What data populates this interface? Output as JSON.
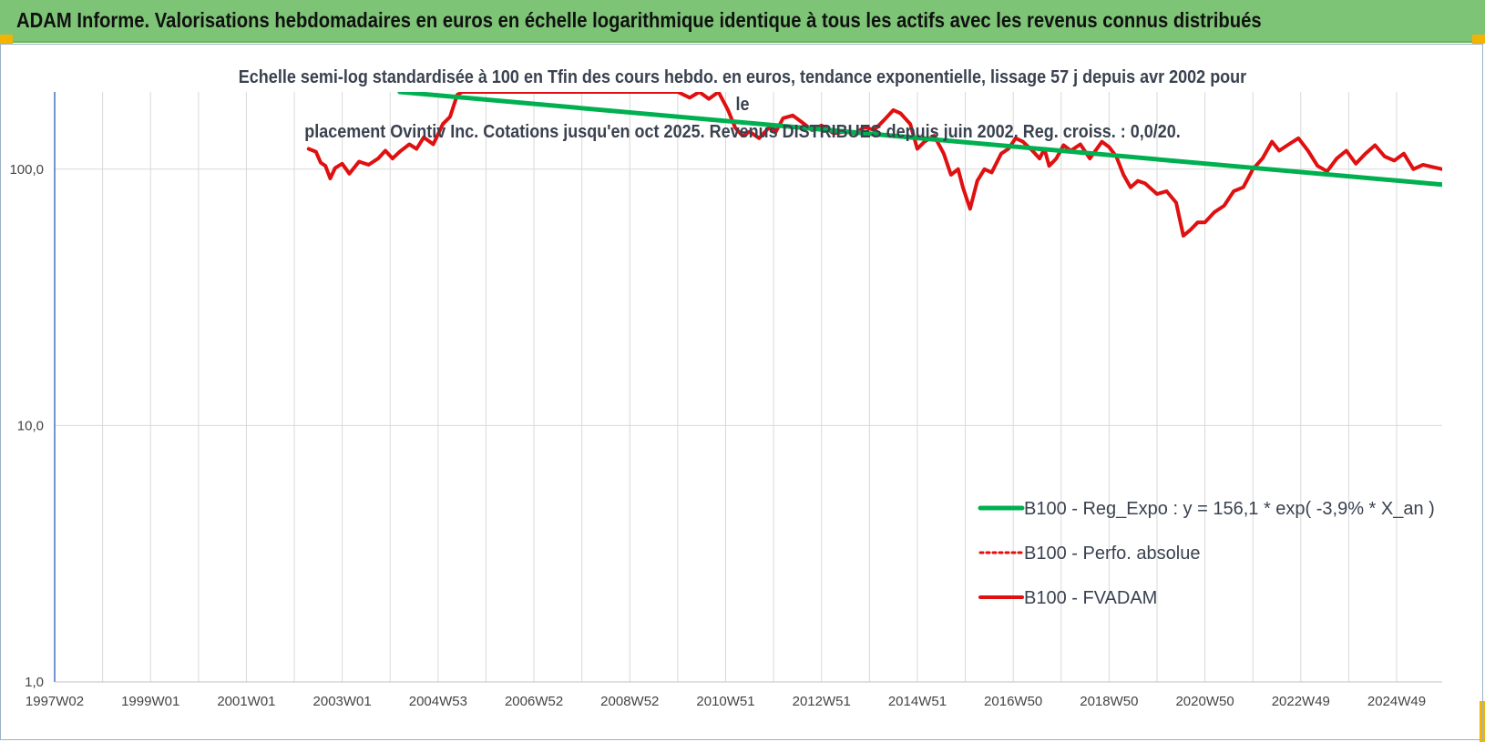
{
  "header": {
    "title": "ADAM Informe. Valorisations hebdomadaires en euros en échelle logarithmique identique à tous les actifs avec les revenus connus distribués"
  },
  "colors": {
    "header_bg": "#7dc476",
    "accent": "#f2b400",
    "trend": "#00b050",
    "price": "#e01010",
    "grid": "#d9d9d9",
    "axis": "#4472c4"
  },
  "chart_data": {
    "type": "line",
    "subtitle_line1": "Echelle semi-log standardisée à 100 en Tfin des cours hebdo. en euros, tendance exponentielle, lissage 57 j depuis avr 2002 pour le",
    "subtitle_line2": "placement Ovintiv Inc. Cotations jusqu'en oct 2025. Revenus DISTRIBUES depuis juin 2002. Reg. croiss. : 0,0/20.",
    "y_scale": "log",
    "ylim": [
      1,
      200
    ],
    "y_ticks": [
      {
        "value": 1,
        "label": "1,0"
      },
      {
        "value": 10,
        "label": "10,0"
      },
      {
        "value": 100,
        "label": "100,0"
      }
    ],
    "x_range": [
      1997.0,
      2025.95
    ],
    "x_ticks": [
      {
        "x": 1997.0,
        "label": "1997W02"
      },
      {
        "x": 1999.0,
        "label": "1999W01"
      },
      {
        "x": 2001.0,
        "label": "2001W01"
      },
      {
        "x": 2003.0,
        "label": "2003W01"
      },
      {
        "x": 2005.0,
        "label": "2004W53"
      },
      {
        "x": 2007.0,
        "label": "2006W52"
      },
      {
        "x": 2009.0,
        "label": "2008W52"
      },
      {
        "x": 2011.0,
        "label": "2010W51"
      },
      {
        "x": 2013.0,
        "label": "2012W51"
      },
      {
        "x": 2015.0,
        "label": "2014W51"
      },
      {
        "x": 2017.0,
        "label": "2016W50"
      },
      {
        "x": 2019.0,
        "label": "2018W50"
      },
      {
        "x": 2021.0,
        "label": "2020W50"
      },
      {
        "x": 2023.0,
        "label": "2022W49"
      },
      {
        "x": 2025.0,
        "label": "2024W49"
      }
    ],
    "grid": true,
    "legend_position": "bottom-right",
    "series": [
      {
        "name": "B100 - Reg_Expo : y = 156,1 * exp( -3,9% *  X_an )",
        "style": "solid",
        "points": [
          [
            2004.2,
            200
          ],
          [
            2025.95,
            87
          ]
        ]
      },
      {
        "name": "B100 - Perfo. absolue",
        "style": "dotted",
        "points": []
      },
      {
        "name": "B100 - FVADAM",
        "style": "solid",
        "points": [
          [
            2002.3,
            120
          ],
          [
            2002.45,
            117
          ],
          [
            2002.55,
            106
          ],
          [
            2002.65,
            103
          ],
          [
            2002.75,
            92
          ],
          [
            2002.85,
            101
          ],
          [
            2003.0,
            105
          ],
          [
            2003.15,
            96
          ],
          [
            2003.35,
            107
          ],
          [
            2003.55,
            104
          ],
          [
            2003.75,
            110
          ],
          [
            2003.9,
            118
          ],
          [
            2004.05,
            110
          ],
          [
            2004.2,
            117
          ],
          [
            2004.4,
            125
          ],
          [
            2004.55,
            120
          ],
          [
            2004.7,
            133
          ],
          [
            2004.9,
            125
          ],
          [
            2005.1,
            150
          ],
          [
            2005.25,
            160
          ],
          [
            2005.4,
            195
          ],
          [
            2005.5,
            200
          ],
          [
            2010.0,
            200
          ],
          [
            2010.25,
            190
          ],
          [
            2010.45,
            200
          ],
          [
            2010.65,
            188
          ],
          [
            2010.85,
            200
          ],
          [
            2011.05,
            170
          ],
          [
            2011.2,
            145
          ],
          [
            2011.35,
            135
          ],
          [
            2011.5,
            140
          ],
          [
            2011.7,
            132
          ],
          [
            2011.9,
            145
          ],
          [
            2012.05,
            140
          ],
          [
            2012.2,
            158
          ],
          [
            2012.4,
            162
          ],
          [
            2012.6,
            152
          ],
          [
            2012.8,
            142
          ],
          [
            2013.0,
            148
          ],
          [
            2013.25,
            138
          ],
          [
            2013.5,
            140
          ],
          [
            2013.7,
            138
          ],
          [
            2013.9,
            146
          ],
          [
            2014.1,
            142
          ],
          [
            2014.3,
            155
          ],
          [
            2014.5,
            170
          ],
          [
            2014.65,
            165
          ],
          [
            2014.85,
            150
          ],
          [
            2015.0,
            120
          ],
          [
            2015.15,
            128
          ],
          [
            2015.35,
            135
          ],
          [
            2015.55,
            115
          ],
          [
            2015.7,
            95
          ],
          [
            2015.85,
            100
          ],
          [
            2015.95,
            85
          ],
          [
            2016.1,
            70
          ],
          [
            2016.25,
            90
          ],
          [
            2016.4,
            100
          ],
          [
            2016.55,
            97
          ],
          [
            2016.75,
            115
          ],
          [
            2016.9,
            120
          ],
          [
            2017.05,
            132
          ],
          [
            2017.2,
            128
          ],
          [
            2017.4,
            118
          ],
          [
            2017.55,
            110
          ],
          [
            2017.65,
            120
          ],
          [
            2017.75,
            103
          ],
          [
            2017.9,
            110
          ],
          [
            2018.05,
            124
          ],
          [
            2018.2,
            118
          ],
          [
            2018.4,
            125
          ],
          [
            2018.6,
            110
          ],
          [
            2018.85,
            128
          ],
          [
            2019.0,
            122
          ],
          [
            2019.15,
            112
          ],
          [
            2019.3,
            95
          ],
          [
            2019.45,
            85
          ],
          [
            2019.6,
            90
          ],
          [
            2019.75,
            88
          ],
          [
            2020.0,
            80
          ],
          [
            2020.2,
            82
          ],
          [
            2020.4,
            74
          ],
          [
            2020.55,
            55
          ],
          [
            2020.7,
            58
          ],
          [
            2020.85,
            62
          ],
          [
            2021.0,
            62
          ],
          [
            2021.2,
            68
          ],
          [
            2021.4,
            72
          ],
          [
            2021.6,
            82
          ],
          [
            2021.8,
            85
          ],
          [
            2022.0,
            100
          ],
          [
            2022.2,
            110
          ],
          [
            2022.4,
            128
          ],
          [
            2022.55,
            118
          ],
          [
            2022.75,
            125
          ],
          [
            2022.95,
            132
          ],
          [
            2023.15,
            118
          ],
          [
            2023.35,
            103
          ],
          [
            2023.55,
            98
          ],
          [
            2023.75,
            110
          ],
          [
            2023.95,
            118
          ],
          [
            2024.15,
            105
          ],
          [
            2024.35,
            115
          ],
          [
            2024.55,
            124
          ],
          [
            2024.75,
            112
          ],
          [
            2024.95,
            108
          ],
          [
            2025.15,
            115
          ],
          [
            2025.35,
            100
          ],
          [
            2025.55,
            104
          ],
          [
            2025.75,
            102
          ],
          [
            2025.95,
            100
          ]
        ]
      }
    ]
  }
}
